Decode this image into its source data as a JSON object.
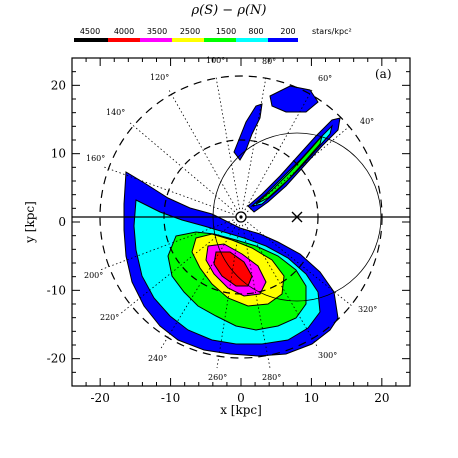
{
  "chart_data": {
    "type": "heatmap",
    "title": "ρ(S) − ρ(N)",
    "panel_label": "(a)",
    "xlabel": "x [kpc]",
    "ylabel": "y [kpc]",
    "xlim": [
      -24,
      24
    ],
    "ylim": [
      -24,
      24
    ],
    "x_ticks": [
      -20,
      -10,
      0,
      10,
      20
    ],
    "y_ticks": [
      -20,
      -10,
      0,
      10,
      20
    ],
    "colorbar": {
      "unit": "stars/kpc²",
      "levels": [
        "4500",
        "4000",
        "3500",
        "2500",
        "1500",
        "800",
        "200"
      ],
      "colors": [
        "#000000",
        "#ff0000",
        "#ff00ff",
        "#ffff00",
        "#00ff00",
        "#00ffff",
        "#0000ff"
      ]
    },
    "sun_position": [
      8,
      0
    ],
    "galactic_center": [
      0,
      0
    ],
    "circle_radii_kpc": [
      11,
      20
    ],
    "angle_labels": [
      "40°",
      "60°",
      "80°",
      "100°",
      "120°",
      "140°",
      "160°",
      "200°",
      "220°",
      "240°",
      "260°",
      "280°",
      "300°",
      "320°"
    ],
    "regions": [
      {
        "level": "200",
        "band": "south_main"
      },
      {
        "level": "800",
        "band": "south_main"
      },
      {
        "level": "1500",
        "band": "south_main"
      },
      {
        "level": "2500",
        "band": "south_core"
      },
      {
        "level": "3500",
        "band": "south_core"
      },
      {
        "level": "4000",
        "band": "south_core"
      },
      {
        "level": "200",
        "band": "north_spurs"
      }
    ]
  }
}
